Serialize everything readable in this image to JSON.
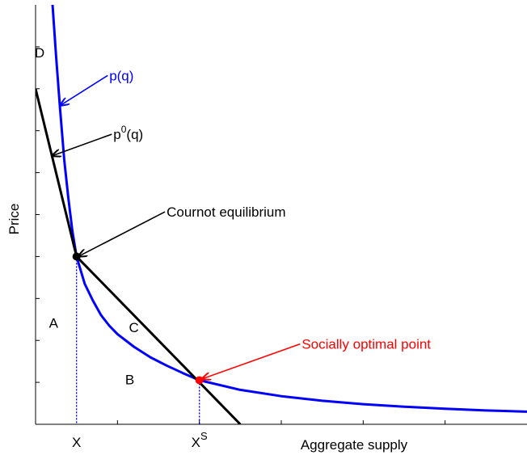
{
  "chart_data": {
    "type": "line",
    "title": "",
    "xlabel": "Aggregate supply",
    "ylabel": "Price",
    "xlim": [
      0,
      6
    ],
    "ylim": [
      0,
      10
    ],
    "grid": false,
    "x_tick_labels": [
      {
        "x": 0.5,
        "label": "X",
        "sup": ""
      },
      {
        "x": 2.0,
        "label": "X",
        "sup": "S"
      }
    ],
    "series": [
      {
        "name": "p(q)",
        "color": "#0000ff",
        "style": "solid",
        "points": [
          [
            0.2,
            10.2
          ],
          [
            0.25,
            8.8
          ],
          [
            0.3,
            7.5
          ],
          [
            0.35,
            6.3
          ],
          [
            0.4,
            5.4
          ],
          [
            0.45,
            4.6
          ],
          [
            0.5,
            4.0
          ],
          [
            0.6,
            3.35
          ],
          [
            0.7,
            2.95
          ],
          [
            0.8,
            2.6
          ],
          [
            0.9,
            2.35
          ],
          [
            1.0,
            2.15
          ],
          [
            1.2,
            1.85
          ],
          [
            1.4,
            1.6
          ],
          [
            1.6,
            1.4
          ],
          [
            1.8,
            1.22
          ],
          [
            2.0,
            1.05
          ],
          [
            2.5,
            0.82
          ],
          [
            3.0,
            0.67
          ],
          [
            3.5,
            0.56
          ],
          [
            4.0,
            0.48
          ],
          [
            4.5,
            0.42
          ],
          [
            5.0,
            0.37
          ],
          [
            5.5,
            0.33
          ],
          [
            6.0,
            0.3
          ]
        ]
      },
      {
        "name": "p^0(q)",
        "color": "#000000",
        "style": "solid",
        "points": [
          [
            0.0,
            8.0
          ],
          [
            0.5,
            4.0
          ],
          [
            2.5,
            0.0
          ]
        ]
      }
    ],
    "dotted_drops": [
      {
        "x": 0.5,
        "y": 4.0,
        "color": "#0000ff"
      },
      {
        "x": 2.0,
        "y": 1.05,
        "color": "#0000ff"
      }
    ],
    "markers": [
      {
        "x": 0.5,
        "y": 4.0,
        "color": "#000000"
      },
      {
        "x": 2.0,
        "y": 1.05,
        "color": "#ff0000"
      }
    ],
    "region_labels": [
      {
        "text": "D",
        "x": 0.05,
        "y": 8.75
      },
      {
        "text": "A",
        "x": 0.22,
        "y": 2.3
      },
      {
        "text": "B",
        "x": 1.15,
        "y": 0.95
      },
      {
        "text": "C",
        "x": 1.2,
        "y": 2.2
      }
    ],
    "annotations": [
      {
        "text": "p(q)",
        "sup": "",
        "color": "#0000ff",
        "text_x": 0.9,
        "text_y": 8.2,
        "arrow_to": [
          0.3,
          7.6
        ]
      },
      {
        "text": "p",
        "sup": "0",
        "suffix": "(q)",
        "color": "#000000",
        "text_x": 0.95,
        "text_y": 6.8,
        "arrow_to": [
          0.2,
          6.4
        ]
      },
      {
        "text": "Cournot equilibrium",
        "sup": "",
        "color": "#000000",
        "text_x": 1.6,
        "text_y": 4.95,
        "arrow_to": [
          0.52,
          4.0
        ]
      },
      {
        "text": "Socially optimal point",
        "sup": "",
        "color": "#ff0000",
        "text_x": 3.25,
        "text_y": 1.8,
        "arrow_to": [
          2.03,
          1.08
        ]
      }
    ]
  }
}
